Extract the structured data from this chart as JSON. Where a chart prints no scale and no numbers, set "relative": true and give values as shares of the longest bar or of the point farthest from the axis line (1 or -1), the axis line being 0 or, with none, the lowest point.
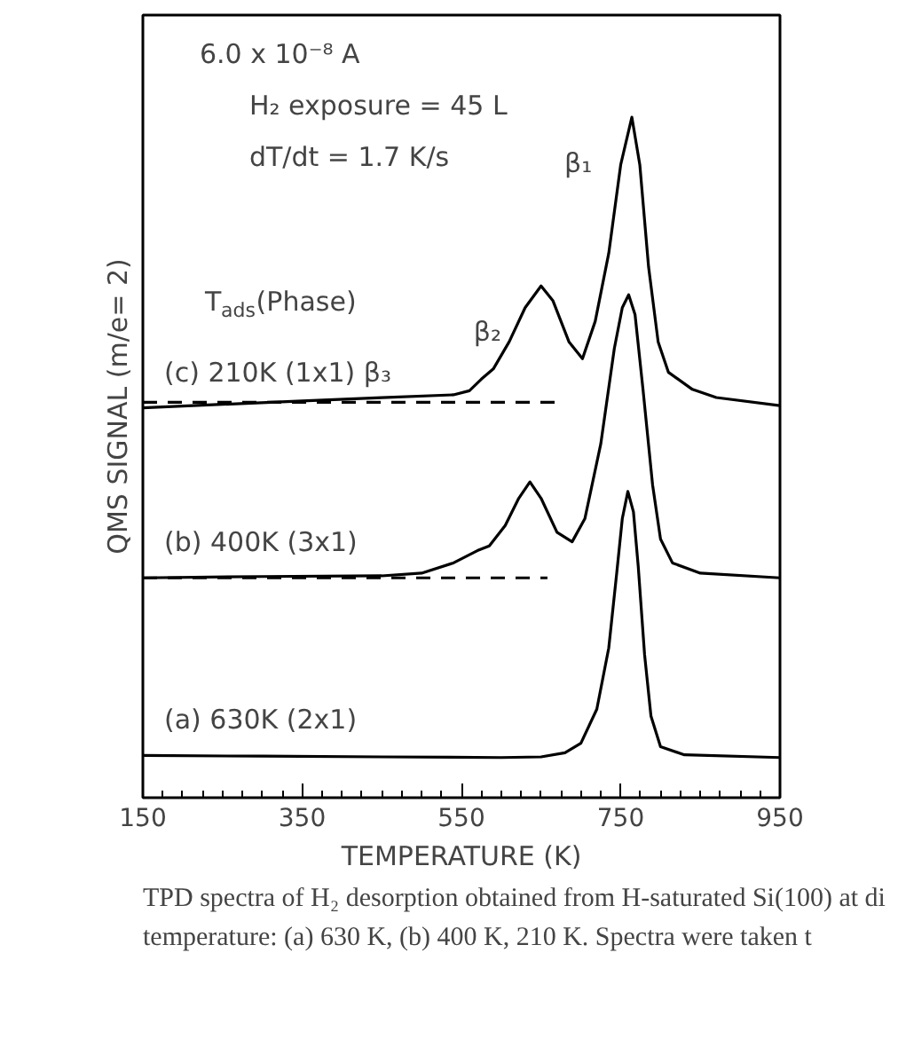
{
  "chart_data": {
    "type": "line",
    "relative": true,
    "xlabel": "TEMPERATURE (K)",
    "ylabel": "QMS SIGNAL (m/e= 2)",
    "legend_title": "T$_{ads}$(Phase)",
    "xlim": [
      150,
      950
    ],
    "xticks": [
      150,
      350,
      550,
      750,
      950
    ],
    "tick_labels": "x",
    "grid": false,
    "legend": false,
    "marker": "none",
    "series": [
      {
        "name": "(a) 630K (2x1)",
        "color": "#000000",
        "line_style": "solid",
        "x": [
          150,
          300,
          450,
          600,
          650,
          680,
          700,
          720,
          735,
          745,
          752,
          759,
          766,
          772,
          780,
          788,
          800,
          830,
          950
        ],
        "values": [
          0.062,
          0.061,
          0.06,
          0.059,
          0.06,
          0.066,
          0.08,
          0.13,
          0.22,
          0.33,
          0.41,
          0.45,
          0.42,
          0.34,
          0.21,
          0.12,
          0.075,
          0.063,
          0.059
        ]
      },
      {
        "name": "(b) 400K (3x1)",
        "color": "#000000",
        "line_style": "solid",
        "x": [
          150,
          300,
          450,
          500,
          540,
          570,
          585,
          605,
          622,
          636,
          650,
          670,
          689,
          705,
          725,
          742,
          752,
          760,
          768,
          778,
          790,
          800,
          815,
          850,
          950
        ],
        "values": [
          0.323,
          0.325,
          0.326,
          0.33,
          0.345,
          0.363,
          0.37,
          0.4,
          0.44,
          0.464,
          0.44,
          0.39,
          0.376,
          0.41,
          0.52,
          0.66,
          0.72,
          0.739,
          0.71,
          0.6,
          0.46,
          0.38,
          0.345,
          0.33,
          0.323
        ]
      },
      {
        "name": "(c) 210K (1x1) β₃",
        "color": "#000000",
        "line_style": "solid",
        "x": [
          150,
          250,
          350,
          450,
          540,
          560,
          575,
          590,
          610,
          630,
          650,
          665,
          685,
          702,
          718,
          735,
          750,
          764,
          774,
          785,
          797,
          810,
          840,
          870,
          950
        ],
        "values": [
          0.573,
          0.578,
          0.583,
          0.588,
          0.592,
          0.598,
          0.615,
          0.63,
          0.67,
          0.72,
          0.752,
          0.73,
          0.67,
          0.645,
          0.7,
          0.8,
          0.93,
          1.0,
          0.93,
          0.78,
          0.67,
          0.625,
          0.6,
          0.588,
          0.576
        ]
      },
      {
        "color": "#000000",
        "line_style": "dashed",
        "x": [
          150,
          658
        ],
        "values": [
          0.323,
          0.323
        ]
      },
      {
        "color": "#000000",
        "line_style": "dashed",
        "x": [
          150,
          672
        ],
        "values": [
          0.581,
          0.581
        ]
      }
    ],
    "annotations": [
      "6.0 x 10⁻⁸ A",
      "H₂ exposure = 45 L",
      "dT/dt = 1.7 K/s",
      {
        "text": "β₁",
        "x": 764,
        "y": 1.0
      },
      {
        "text": "β₂",
        "x": 650,
        "y": 0.752
      },
      "TPD spectra of H₂ desorption obtained from H-saturated Si(100) at di",
      "temperature: (a) 630 K, (b) 400 K, 210 K. Spectra were taken t"
    ]
  }
}
